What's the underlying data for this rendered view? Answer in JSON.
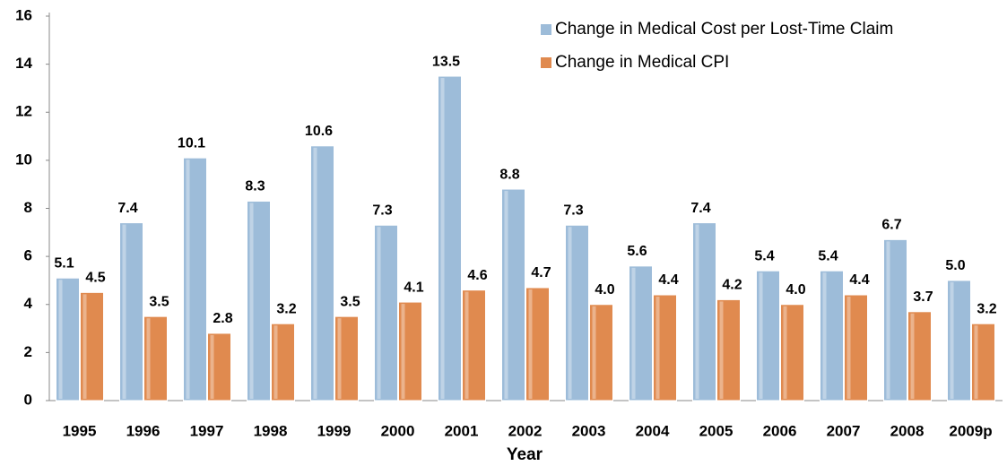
{
  "chart_data": {
    "type": "bar",
    "x_label": "Year",
    "categories": [
      "1995",
      "1996",
      "1997",
      "1998",
      "1999",
      "2000",
      "2001",
      "2002",
      "2003",
      "2004",
      "2005",
      "2006",
      "2007",
      "2008",
      "2009p"
    ],
    "series": [
      {
        "name": "Change in Medical Cost per Lost-Time Claim",
        "color": "#9dbcd9",
        "values": [
          5.1,
          7.4,
          10.1,
          8.3,
          10.6,
          7.3,
          13.5,
          8.8,
          7.3,
          5.6,
          7.4,
          5.4,
          5.4,
          6.7,
          5.0
        ],
        "value_labels": [
          "5.1",
          "7.4",
          "10.1",
          "8.3",
          "10.6",
          "7.3",
          "13.5",
          "8.8",
          "7.3",
          "5.6",
          "7.4",
          "5.4",
          "5.4",
          "6.7",
          "5.0"
        ]
      },
      {
        "name": "Change in Medical CPI",
        "color": "#e08a4f",
        "values": [
          4.5,
          3.5,
          2.8,
          3.2,
          3.5,
          4.1,
          4.6,
          4.7,
          4.0,
          4.4,
          4.2,
          4.0,
          4.4,
          3.7,
          3.2
        ],
        "value_labels": [
          "4.5",
          "3.5",
          "2.8",
          "3.2",
          "3.5",
          "4.1",
          "4.6",
          "4.7",
          "4.0",
          "4.4",
          "4.2",
          "4.0",
          "4.4",
          "3.7",
          "3.2"
        ]
      }
    ],
    "ylim": [
      0,
      16
    ],
    "yticks": [
      0,
      2,
      4,
      6,
      8,
      10,
      12,
      14,
      16
    ],
    "legend": "top-right"
  }
}
